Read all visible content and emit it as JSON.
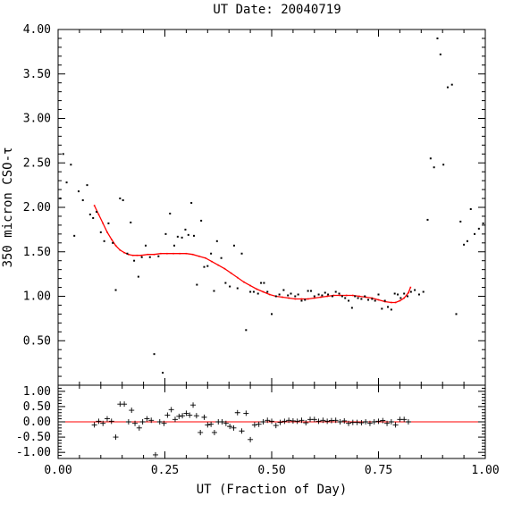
{
  "chart_data": [
    {
      "type": "scatter",
      "title": "UT Date: 20040719",
      "xlabel": "",
      "ylabel": "350 micron CSO-τ",
      "xlim": [
        0.0,
        1.0
      ],
      "ylim": [
        0.0,
        4.0
      ],
      "x_ticks": [
        "",
        "",
        "",
        "",
        ""
      ],
      "y_ticks": [
        "0.50",
        "1.00",
        "1.50",
        "2.00",
        "2.50",
        "3.00",
        "3.50",
        "4.00"
      ],
      "point_color": "#000000",
      "fit_color": "#ff0000",
      "series": [
        {
          "type": "scatter",
          "x": [
            0.005,
            0.012,
            0.02,
            0.03,
            0.038,
            0.048,
            0.058,
            0.068,
            0.075,
            0.082,
            0.09,
            0.1,
            0.108,
            0.118,
            0.128,
            0.135,
            0.145,
            0.152,
            0.162,
            0.17,
            0.178,
            0.188,
            0.196,
            0.205,
            0.215,
            0.225,
            0.235,
            0.245,
            0.252,
            0.262,
            0.272,
            0.28,
            0.29,
            0.298,
            0.305,
            0.312,
            0.318,
            0.325,
            0.335,
            0.342,
            0.35,
            0.358,
            0.365,
            0.372,
            0.382,
            0.392,
            0.402,
            0.412,
            0.42,
            0.43,
            0.44,
            0.45,
            0.458,
            0.468,
            0.475,
            0.482,
            0.49,
            0.5,
            0.51,
            0.518,
            0.528,
            0.538,
            0.545,
            0.555,
            0.562,
            0.57,
            0.578,
            0.585,
            0.592,
            0.6,
            0.61,
            0.618,
            0.625,
            0.632,
            0.642,
            0.65,
            0.658,
            0.665,
            0.672,
            0.68,
            0.688,
            0.695,
            0.702,
            0.71,
            0.718,
            0.726,
            0.735,
            0.742,
            0.75,
            0.758,
            0.765,
            0.772,
            0.78,
            0.788,
            0.795,
            0.802,
            0.81,
            0.818,
            0.826,
            0.835,
            0.845,
            0.855,
            0.865,
            0.872,
            0.88,
            0.888,
            0.895,
            0.902,
            0.912,
            0.922,
            0.932,
            0.942,
            0.95,
            0.958,
            0.966,
            0.975,
            0.985,
            0.995
          ],
          "y": [
            2.1,
            2.6,
            2.28,
            2.48,
            1.68,
            2.18,
            2.08,
            2.25,
            1.92,
            1.88,
            1.95,
            1.72,
            1.62,
            1.82,
            1.6,
            1.07,
            2.1,
            2.08,
            1.48,
            1.83,
            1.4,
            1.22,
            1.44,
            1.57,
            1.44,
            0.35,
            1.45,
            0.14,
            1.7,
            1.93,
            1.57,
            1.67,
            1.66,
            1.75,
            1.69,
            2.05,
            1.68,
            1.13,
            1.85,
            1.33,
            1.34,
            1.48,
            1.06,
            1.62,
            1.43,
            1.15,
            1.11,
            1.57,
            1.09,
            1.48,
            0.62,
            1.05,
            1.05,
            1.03,
            1.15,
            1.15,
            1.05,
            0.8,
            1.0,
            1.02,
            1.07,
            1.01,
            1.03,
            1.0,
            1.02,
            0.95,
            0.96,
            1.06,
            1.06,
            1.0,
            1.02,
            1.01,
            1.04,
            1.02,
            1.0,
            1.05,
            1.03,
            1.0,
            0.98,
            0.95,
            0.87,
            1.0,
            0.98,
            0.97,
            1.0,
            0.96,
            0.97,
            0.95,
            1.02,
            0.86,
            0.95,
            0.88,
            0.85,
            1.03,
            1.02,
            0.98,
            1.03,
            1.0,
            1.05,
            1.07,
            1.02,
            1.05,
            1.86,
            2.55,
            2.45,
            3.9,
            3.72,
            2.48,
            3.35,
            3.38,
            0.8,
            1.84,
            1.58,
            1.62,
            1.98,
            1.7,
            1.76,
            1.82
          ]
        },
        {
          "type": "line",
          "name": "",
          "x": [
            0.085,
            0.095,
            0.105,
            0.115,
            0.125,
            0.135,
            0.145,
            0.155,
            0.165,
            0.175,
            0.185,
            0.195,
            0.21,
            0.225,
            0.24,
            0.255,
            0.27,
            0.285,
            0.3,
            0.315,
            0.33,
            0.345,
            0.36,
            0.375,
            0.39,
            0.405,
            0.42,
            0.435,
            0.45,
            0.465,
            0.48,
            0.495,
            0.51,
            0.525,
            0.54,
            0.555,
            0.57,
            0.585,
            0.6,
            0.615,
            0.63,
            0.645,
            0.66,
            0.675,
            0.69,
            0.705,
            0.72,
            0.735,
            0.75,
            0.765,
            0.78,
            0.79,
            0.8,
            0.81,
            0.82,
            0.825
          ],
          "y": [
            2.02,
            1.92,
            1.82,
            1.72,
            1.64,
            1.57,
            1.52,
            1.49,
            1.47,
            1.46,
            1.46,
            1.46,
            1.47,
            1.47,
            1.48,
            1.48,
            1.48,
            1.48,
            1.48,
            1.47,
            1.45,
            1.43,
            1.39,
            1.35,
            1.31,
            1.26,
            1.21,
            1.16,
            1.12,
            1.08,
            1.05,
            1.02,
            1.0,
            0.99,
            0.98,
            0.97,
            0.97,
            0.97,
            0.98,
            0.99,
            1.0,
            1.01,
            1.01,
            1.01,
            1.01,
            1.0,
            0.99,
            0.98,
            0.96,
            0.94,
            0.93,
            0.93,
            0.95,
            0.98,
            1.04,
            1.1
          ]
        }
      ]
    },
    {
      "type": "scatter",
      "title": "",
      "xlabel": "UT (Fraction of Day)",
      "ylabel": "",
      "xlim": [
        0.0,
        1.0
      ],
      "ylim": [
        -1.2,
        1.2
      ],
      "x_ticks": [
        "0.00",
        "0.25",
        "0.50",
        "0.75",
        "1.00"
      ],
      "y_ticks": [
        "-1.00",
        "-0.50",
        "0.00",
        "0.50",
        "1.00"
      ],
      "point_color": "#000000",
      "zero_line_color": "#ff0000",
      "series": [
        {
          "type": "scatter",
          "x": [
            0.085,
            0.095,
            0.105,
            0.115,
            0.125,
            0.135,
            0.145,
            0.155,
            0.165,
            0.172,
            0.18,
            0.19,
            0.198,
            0.208,
            0.218,
            0.228,
            0.238,
            0.248,
            0.256,
            0.265,
            0.274,
            0.283,
            0.291,
            0.3,
            0.308,
            0.316,
            0.324,
            0.333,
            0.342,
            0.35,
            0.358,
            0.366,
            0.375,
            0.384,
            0.393,
            0.402,
            0.411,
            0.42,
            0.43,
            0.44,
            0.45,
            0.46,
            0.47,
            0.48,
            0.49,
            0.5,
            0.51,
            0.52,
            0.53,
            0.54,
            0.55,
            0.56,
            0.57,
            0.58,
            0.59,
            0.6,
            0.61,
            0.62,
            0.63,
            0.64,
            0.65,
            0.66,
            0.67,
            0.68,
            0.69,
            0.7,
            0.71,
            0.72,
            0.73,
            0.74,
            0.75,
            0.76,
            0.77,
            0.78,
            0.79,
            0.8,
            0.81,
            0.82
          ],
          "y": [
            -0.1,
            0.02,
            -0.05,
            0.1,
            0.02,
            -0.5,
            0.58,
            0.58,
            0.0,
            0.38,
            -0.05,
            -0.2,
            0.0,
            0.1,
            0.05,
            -1.08,
            0.0,
            -0.05,
            0.22,
            0.4,
            0.08,
            0.18,
            0.2,
            0.28,
            0.22,
            0.55,
            0.2,
            -0.35,
            0.15,
            -0.1,
            -0.08,
            -0.35,
            0.0,
            0.0,
            -0.05,
            -0.15,
            -0.2,
            0.3,
            -0.3,
            0.28,
            -0.58,
            -0.1,
            -0.08,
            0.0,
            0.05,
            0.02,
            -0.12,
            -0.02,
            0.02,
            0.05,
            0.03,
            0.02,
            0.05,
            -0.03,
            0.08,
            0.08,
            0.02,
            0.05,
            0.02,
            0.04,
            0.05,
            0.0,
            0.03,
            -0.05,
            -0.02,
            -0.02,
            -0.03,
            0.0,
            -0.05,
            0.0,
            0.02,
            0.04,
            -0.05,
            0.0,
            -0.1,
            0.08,
            0.08,
            0.0
          ]
        }
      ]
    }
  ]
}
